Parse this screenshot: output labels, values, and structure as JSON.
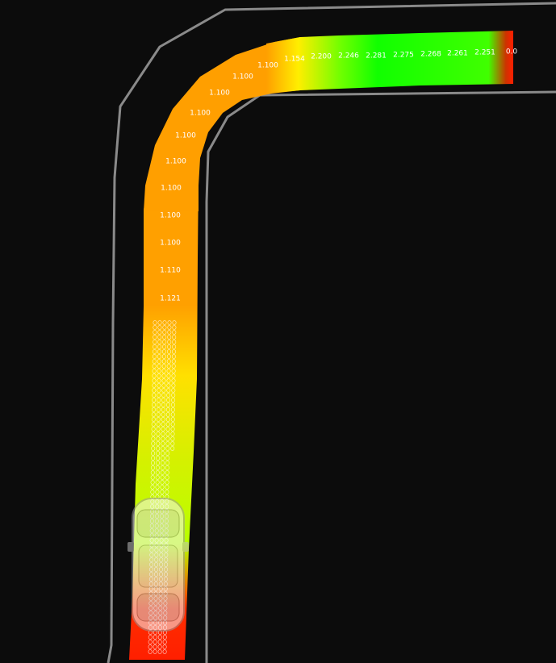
{
  "colors": {
    "background": "#0c0c0c",
    "road_edge": "#8a8a8a",
    "path_low": "#ff1e00",
    "path_mid_low": "#ffee00",
    "path_mid": "#ff9f00",
    "path_high": "#11ff00",
    "label": "#ffffff"
  },
  "vehicle": {
    "icon": "car-top-view-icon"
  },
  "speed_labels": [
    {
      "value": "1.121"
    },
    {
      "value": "1.110"
    },
    {
      "value": "1.100"
    },
    {
      "value": "1.100"
    },
    {
      "value": "1.100"
    },
    {
      "value": "1.100"
    },
    {
      "value": "1.100"
    },
    {
      "value": "1.100"
    },
    {
      "value": "1.100"
    },
    {
      "value": "1.100"
    },
    {
      "value": "1.100"
    },
    {
      "value": "1.154"
    },
    {
      "value": "2.200"
    },
    {
      "value": "2.246"
    },
    {
      "value": "2.281"
    },
    {
      "value": "2.275"
    },
    {
      "value": "2.268"
    },
    {
      "value": "2.261"
    },
    {
      "value": "2.251"
    },
    {
      "value": "0.0"
    }
  ]
}
